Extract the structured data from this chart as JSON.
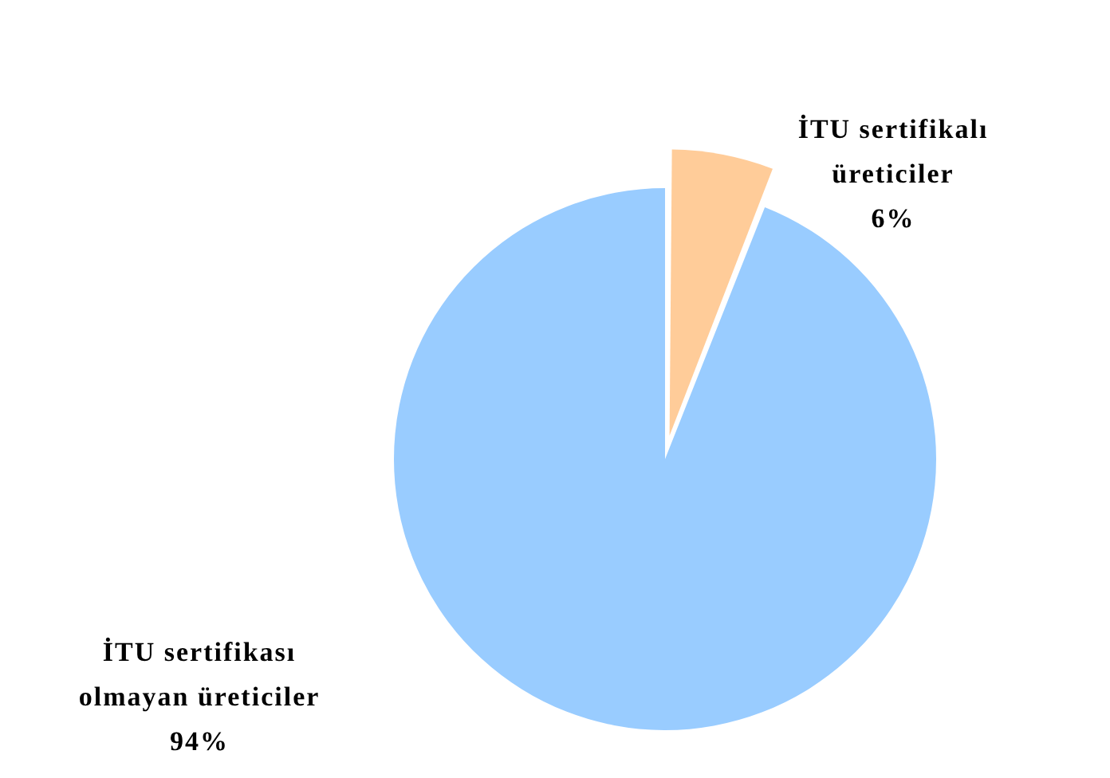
{
  "chart_data": {
    "type": "pie",
    "categories": [
      "İTU sertifikalı üreticiler",
      "İTU sertifikası olmayan üreticiler"
    ],
    "values": [
      6,
      94
    ],
    "colors": [
      "#ffcc99",
      "#99ccff"
    ],
    "value_labels": [
      "6%",
      "94%"
    ],
    "legend": false
  }
}
